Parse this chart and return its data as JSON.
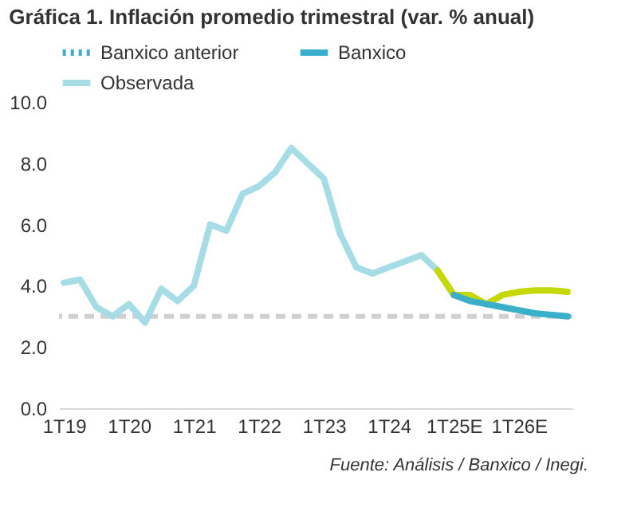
{
  "chart_data": {
    "type": "line",
    "title": "Gráfica 1. Inflación promedio trimestral (var. % anual)",
    "categories": [
      "1T19",
      null,
      null,
      null,
      "1T20",
      null,
      null,
      null,
      "1T21",
      null,
      null,
      null,
      "1T22",
      null,
      null,
      null,
      "1T23",
      null,
      null,
      null,
      "1T24",
      null,
      null,
      null,
      "1T25E",
      null,
      null,
      null,
      "1T26E",
      null,
      null,
      null
    ],
    "series": [
      {
        "name": "Banxico anterior",
        "color": "#3aafc9",
        "line_style": "dotted",
        "values": [
          null,
          null,
          null,
          null,
          null,
          null,
          null,
          null,
          null,
          null,
          null,
          null,
          null,
          null,
          null,
          null,
          null,
          null,
          null,
          null,
          null,
          null,
          null,
          null,
          null,
          null,
          null,
          null,
          null,
          null,
          null,
          null
        ]
      },
      {
        "name": "Banxico",
        "color": "#3aafc9",
        "line_style": "solid",
        "values": [
          null,
          null,
          null,
          null,
          null,
          null,
          null,
          null,
          null,
          null,
          null,
          null,
          null,
          null,
          null,
          null,
          null,
          null,
          null,
          null,
          null,
          null,
          null,
          null,
          3.7,
          3.5,
          3.4,
          3.3,
          3.2,
          3.1,
          3.05,
          3.0
        ]
      },
      {
        "color": "#c5d800",
        "line_style": "solid",
        "values": [
          null,
          null,
          null,
          null,
          null,
          null,
          null,
          null,
          null,
          null,
          null,
          null,
          null,
          null,
          null,
          null,
          null,
          null,
          null,
          null,
          null,
          null,
          null,
          4.5,
          3.7,
          3.7,
          3.4,
          3.7,
          3.8,
          3.85,
          3.85,
          3.8
        ]
      },
      {
        "name": "Observada",
        "color": "#a6dce6",
        "line_style": "solid",
        "values": [
          4.1,
          4.2,
          3.3,
          3.0,
          3.4,
          2.8,
          3.9,
          3.5,
          4.0,
          6.0,
          5.8,
          7.0,
          7.25,
          7.7,
          8.5,
          8.0,
          7.5,
          5.7,
          4.6,
          4.4,
          4.6,
          4.8,
          5.0,
          4.5,
          3.7,
          null,
          null,
          null,
          null,
          null,
          null,
          null
        ]
      }
    ],
    "ylim": [
      0,
      10
    ],
    "yticks": [
      {
        "value": 0,
        "label": "0.0"
      },
      {
        "value": 2,
        "label": "2.0"
      },
      {
        "value": 4,
        "label": "4.0"
      },
      {
        "value": 6,
        "label": "6.0"
      },
      {
        "value": 8,
        "label": "8.0"
      },
      {
        "value": 10,
        "label": "10.0"
      }
    ],
    "ref_lines": [
      {
        "axis": "y",
        "value": 3,
        "color": "#d0d0d0",
        "line_style": "dashed"
      }
    ],
    "annotations": [
      "Fuente: Análisis / Banxico / Inegi."
    ],
    "grid": false,
    "legend": "top",
    "marker": "none"
  }
}
